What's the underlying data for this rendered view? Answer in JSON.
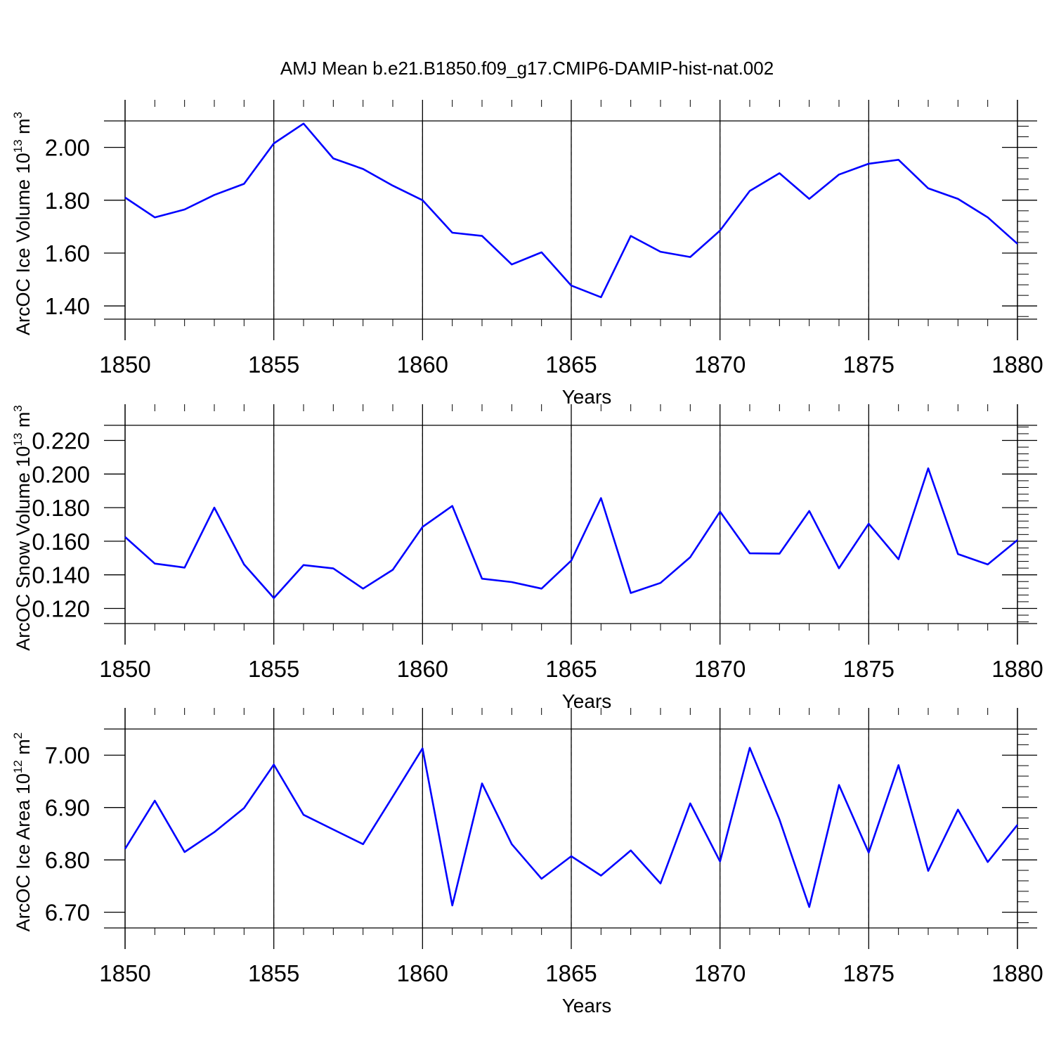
{
  "title": "AMJ Mean b.e21.B1850.f09_g17.CMIP6-DAMIP-hist-nat.002",
  "colors": {
    "line": "#0000ff",
    "axis": "#000000",
    "grid": "#808080"
  },
  "chart_data": [
    {
      "type": "line",
      "ylabel": "ArcOC Ice Volume 10",
      "ylabel_exp": "13",
      "ylabel_unit": " m",
      "ylabel_unit_exp": "3",
      "xlabel": "Years",
      "xlim": [
        1850,
        1880
      ],
      "ylim": [
        1.35,
        2.1
      ],
      "xticks": [
        "1850",
        "1855",
        "1860",
        "1865",
        "1870",
        "1875",
        "1880"
      ],
      "yticks": [
        "1.40",
        "1.60",
        "1.80",
        "2.00"
      ],
      "ytick_values": [
        1.4,
        1.6,
        1.8,
        2.0
      ],
      "x": [
        1850,
        1851,
        1852,
        1853,
        1854,
        1855,
        1856,
        1857,
        1858,
        1859,
        1860,
        1861,
        1862,
        1863,
        1864,
        1865,
        1866,
        1867,
        1868,
        1869,
        1870,
        1871,
        1872,
        1873,
        1874,
        1875,
        1876,
        1877,
        1878,
        1879,
        1880
      ],
      "values": [
        1.81,
        1.735,
        1.765,
        1.82,
        1.862,
        2.015,
        2.09,
        1.958,
        1.918,
        1.855,
        1.8,
        1.677,
        1.665,
        1.557,
        1.603,
        1.477,
        1.433,
        1.665,
        1.605,
        1.585,
        1.685,
        1.835,
        1.902,
        1.805,
        1.897,
        1.938,
        1.953,
        1.845,
        1.805,
        1.735,
        1.635
      ]
    },
    {
      "type": "line",
      "ylabel": "ArcOC Snow Volume 10",
      "ylabel_exp": "13",
      "ylabel_unit": " m",
      "ylabel_unit_exp": "3",
      "xlabel": "Years",
      "xlim": [
        1850,
        1880
      ],
      "ylim": [
        0.111,
        0.229
      ],
      "xticks": [
        "1850",
        "1855",
        "1860",
        "1865",
        "1870",
        "1875",
        "1880"
      ],
      "yticks": [
        "0.120",
        "0.140",
        "0.160",
        "0.180",
        "0.200",
        "0.220"
      ],
      "ytick_values": [
        0.12,
        0.14,
        0.16,
        0.18,
        0.2,
        0.22
      ],
      "x": [
        1850,
        1851,
        1852,
        1853,
        1854,
        1855,
        1856,
        1857,
        1858,
        1859,
        1860,
        1861,
        1862,
        1863,
        1864,
        1865,
        1866,
        1867,
        1868,
        1869,
        1870,
        1871,
        1872,
        1873,
        1874,
        1875,
        1876,
        1877,
        1878,
        1879,
        1880
      ],
      "values": [
        0.1625,
        0.1467,
        0.1443,
        0.18,
        0.1462,
        0.1262,
        0.1458,
        0.1438,
        0.1318,
        0.143,
        0.1685,
        0.181,
        0.1377,
        0.1357,
        0.1318,
        0.1485,
        0.1857,
        0.1292,
        0.1352,
        0.1505,
        0.1776,
        0.1528,
        0.1526,
        0.178,
        0.1439,
        0.1704,
        0.1493,
        0.2034,
        0.1524,
        0.1462,
        0.1607
      ]
    },
    {
      "type": "line",
      "ylabel": "ArcOC Ice Area 10",
      "ylabel_exp": "12",
      "ylabel_unit": " m",
      "ylabel_unit_exp": "2",
      "xlabel": "Years",
      "xlim": [
        1850,
        1880
      ],
      "ylim": [
        6.67,
        7.05
      ],
      "xticks": [
        "1850",
        "1855",
        "1860",
        "1865",
        "1870",
        "1875",
        "1880"
      ],
      "yticks": [
        "6.70",
        "6.80",
        "6.90",
        "7.00"
      ],
      "ytick_values": [
        6.7,
        6.8,
        6.9,
        7.0
      ],
      "x": [
        1850,
        1851,
        1852,
        1853,
        1854,
        1855,
        1856,
        1857,
        1858,
        1859,
        1860,
        1861,
        1862,
        1863,
        1864,
        1865,
        1866,
        1867,
        1868,
        1869,
        1870,
        1871,
        1872,
        1873,
        1874,
        1875,
        1876,
        1877,
        1878,
        1879,
        1880
      ],
      "values": [
        6.821,
        6.913,
        6.815,
        6.853,
        6.899,
        6.982,
        6.886,
        6.858,
        6.83,
        6.921,
        7.013,
        6.713,
        6.946,
        6.83,
        6.764,
        6.807,
        6.77,
        6.818,
        6.755,
        6.908,
        6.797,
        7.014,
        6.877,
        6.71,
        6.943,
        6.814,
        6.981,
        6.779,
        6.896,
        6.796,
        6.867
      ]
    }
  ]
}
